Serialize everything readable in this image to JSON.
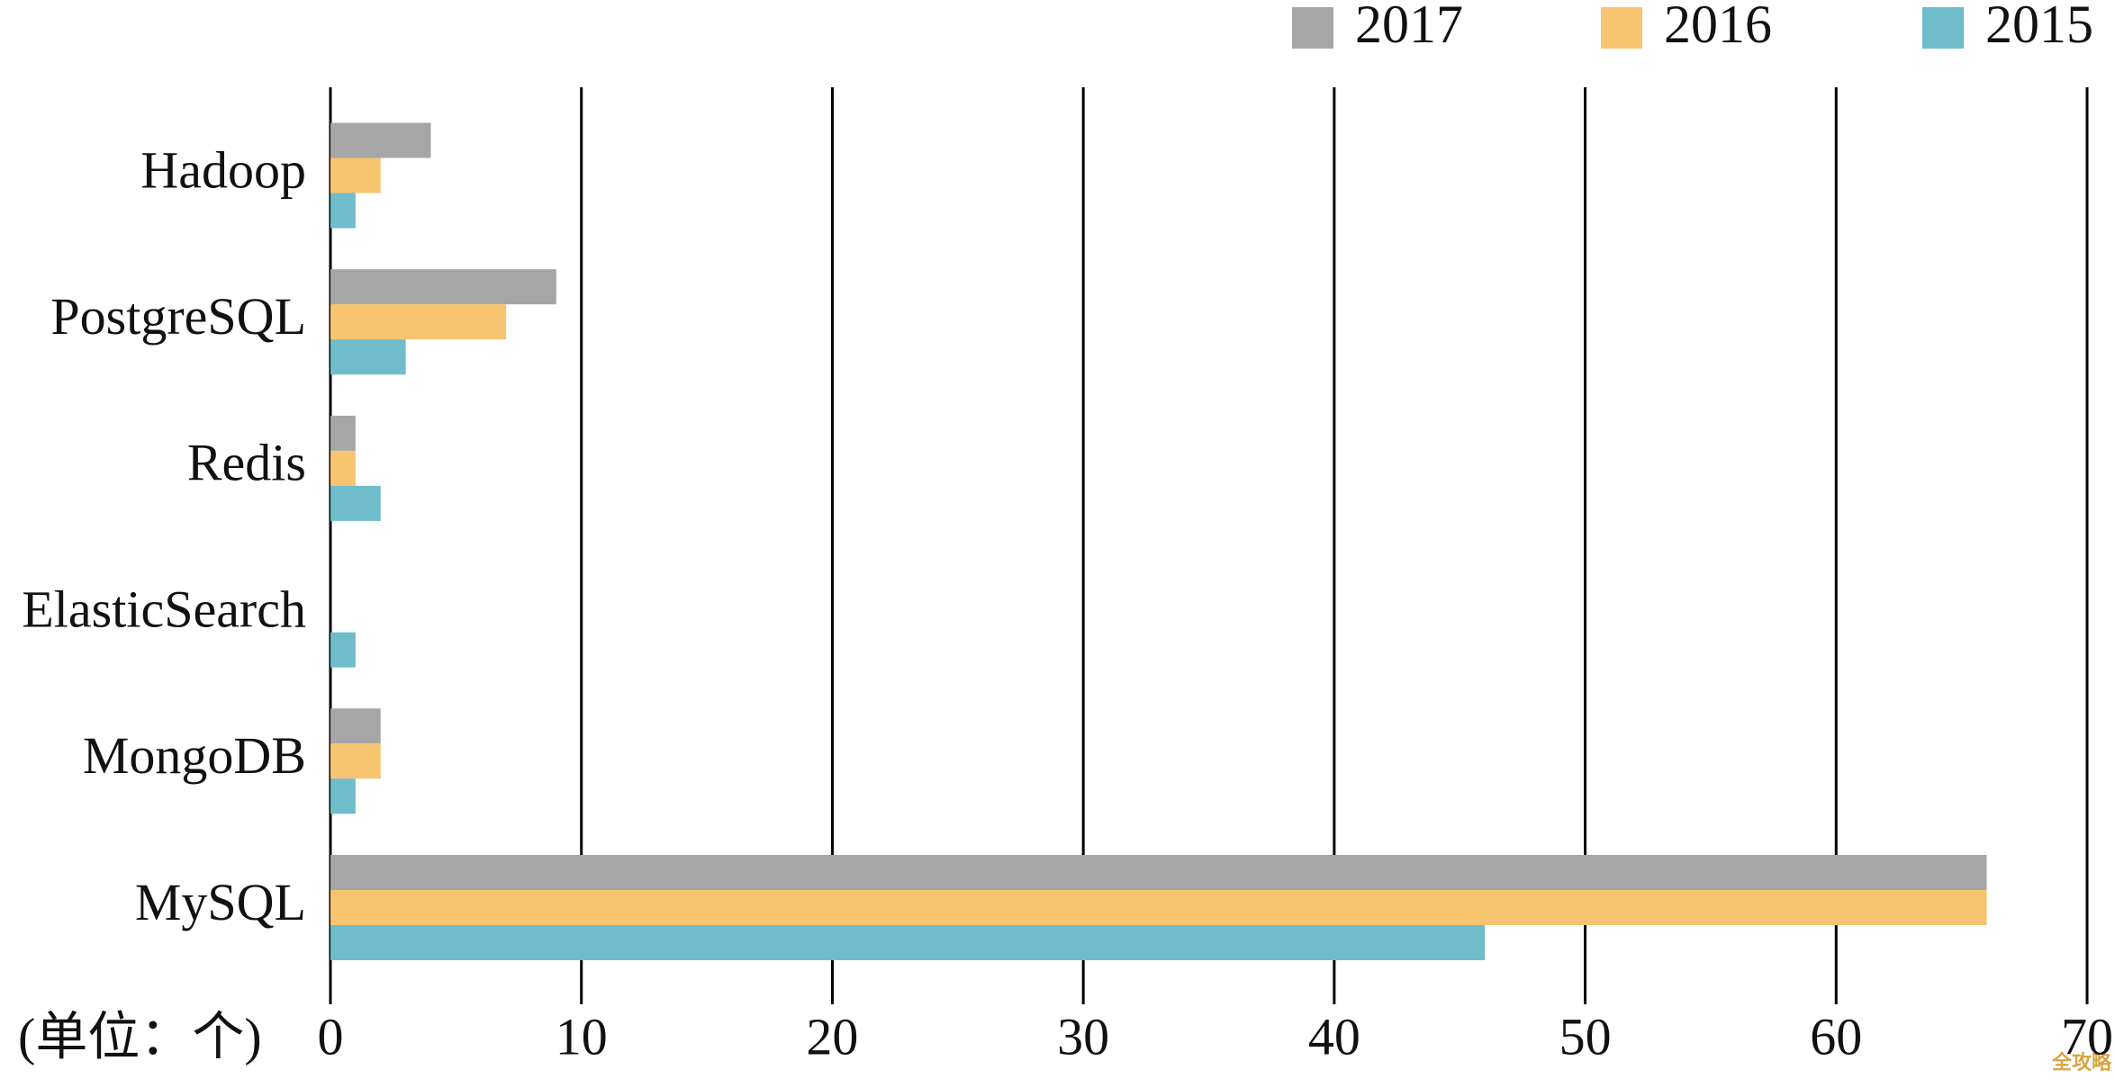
{
  "chart_data": {
    "type": "bar",
    "orientation": "horizontal",
    "categories": [
      "Hadoop",
      "PostgreSQL",
      "Redis",
      "ElasticSearch",
      "MongoDB",
      "MySQL"
    ],
    "series": [
      {
        "name": "2017",
        "color": "#a6a6a6",
        "values": [
          4,
          9,
          1,
          0,
          2,
          66
        ]
      },
      {
        "name": "2016",
        "color": "#f7c46f",
        "values": [
          2,
          7,
          1,
          0,
          2,
          66
        ]
      },
      {
        "name": "2015",
        "color": "#6fbccb",
        "values": [
          1,
          3,
          2,
          1,
          1,
          46
        ]
      }
    ],
    "xlim": [
      0,
      70
    ],
    "xticks": [
      0,
      10,
      20,
      30,
      40,
      50,
      60,
      70
    ],
    "grid": true,
    "legend": "top-right",
    "unit_label": "(单位：个)",
    "watermark": "全攻略"
  }
}
